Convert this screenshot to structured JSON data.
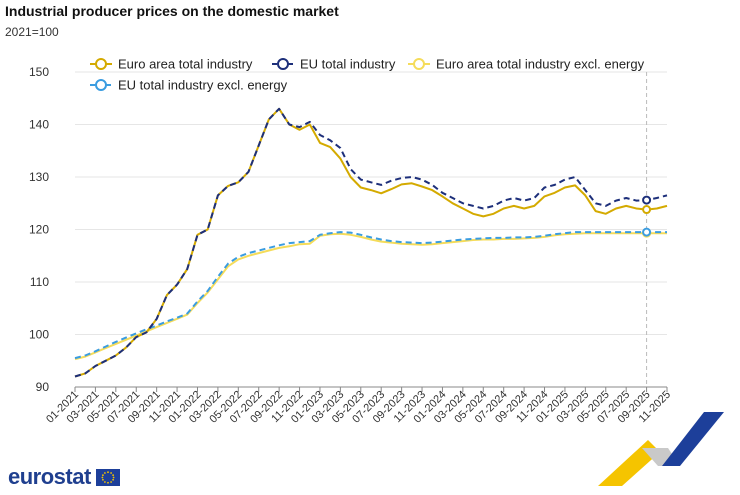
{
  "header": {
    "title": "Industrial producer prices on the domestic market",
    "subtitle": "2021=100"
  },
  "logo": {
    "text": "eurostat"
  },
  "colors": {
    "euro_area_total": "#d4aa00",
    "eu_total": "#1d2f7a",
    "euro_area_excl_energy": "#f5dc5a",
    "eu_excl_energy": "#3a9ce0",
    "grid": "#e6e6e6",
    "axis": "#888888",
    "deco_yellow": "#f5c400",
    "deco_blue": "#1d3f9a",
    "deco_grey": "#c9c9c9"
  },
  "chart_data": {
    "type": "line",
    "title": "Industrial producer prices on the domestic market",
    "subtitle": "2021=100",
    "xlabel": "",
    "ylabel": "",
    "ylim": [
      90,
      150
    ],
    "yticks": [
      90,
      100,
      110,
      120,
      130,
      140,
      150
    ],
    "grid": "horizontal",
    "legend_position": "top",
    "x_tick_labels": [
      "01-2021",
      "03-2021",
      "05-2021",
      "07-2021",
      "09-2021",
      "11-2021",
      "01-2022",
      "03-2022",
      "05-2022",
      "07-2022",
      "09-2022",
      "11-2022",
      "01-2023",
      "03-2023",
      "05-2023",
      "07-2023",
      "09-2023",
      "11-2023",
      "01-2024",
      "03-2024",
      "05-2024",
      "07-2024",
      "09-2024",
      "11-2024",
      "01-2025",
      "03-2025",
      "05-2025",
      "07-2025",
      "09-2025",
      "11-2025"
    ],
    "highlight_category": "09-2025",
    "series": [
      {
        "name": "Euro area total industry",
        "color_key": "euro_area_total",
        "dash": false,
        "values": [
          92.0,
          92.6,
          94.0,
          95.0,
          96.0,
          97.5,
          99.5,
          100.4,
          103.0,
          107.5,
          109.5,
          112.5,
          119.0,
          120.0,
          126.5,
          128.3,
          129.0,
          131.0,
          136.0,
          141.0,
          143.0,
          140.0,
          139.0,
          140.0,
          136.5,
          135.7,
          133.5,
          130.0,
          128.0,
          127.5,
          126.9,
          127.7,
          128.6,
          128.8,
          128.2,
          127.5,
          126.3,
          125.0,
          124.0,
          123.0,
          122.5,
          123.0,
          124.0,
          124.5,
          124.0,
          124.5,
          126.3,
          127.0,
          128.0,
          128.4,
          126.5,
          123.5,
          123.0,
          124.0,
          124.5,
          124.0,
          123.8,
          124.0,
          124.5
        ]
      },
      {
        "name": "EU total industry",
        "color_key": "eu_total",
        "dash": true,
        "values": [
          92.0,
          92.6,
          94.0,
          95.0,
          96.0,
          97.5,
          99.5,
          100.4,
          103.0,
          107.5,
          109.5,
          112.5,
          119.0,
          120.0,
          126.5,
          128.3,
          129.0,
          131.0,
          136.0,
          141.0,
          143.0,
          140.0,
          139.5,
          140.5,
          138.0,
          137.0,
          135.5,
          131.5,
          129.5,
          129.0,
          128.5,
          129.3,
          129.8,
          130.0,
          129.5,
          128.5,
          127.0,
          126.0,
          125.0,
          124.5,
          124.0,
          124.5,
          125.5,
          126.0,
          125.5,
          126.0,
          128.0,
          128.5,
          129.5,
          130.0,
          127.5,
          125.0,
          124.5,
          125.5,
          126.0,
          125.5,
          125.6,
          126.0,
          126.5
        ]
      },
      {
        "name": "Euro area total industry excl. energy",
        "color_key": "euro_area_excl_energy",
        "dash": false,
        "values": [
          95.3,
          95.8,
          96.6,
          97.4,
          98.2,
          99.0,
          99.8,
          100.6,
          101.4,
          102.2,
          103.0,
          103.8,
          106.0,
          108.0,
          110.5,
          113.0,
          114.3,
          115.0,
          115.5,
          116.0,
          116.5,
          116.8,
          117.2,
          117.3,
          118.8,
          119.1,
          119.2,
          119.0,
          118.6,
          118.1,
          117.7,
          117.5,
          117.3,
          117.2,
          117.1,
          117.2,
          117.4,
          117.6,
          117.8,
          118.0,
          118.1,
          118.1,
          118.2,
          118.2,
          118.3,
          118.4,
          118.6,
          118.9,
          119.1,
          119.2,
          119.3,
          119.3,
          119.3,
          119.3,
          119.3,
          119.3,
          119.3,
          119.3,
          119.3
        ]
      },
      {
        "name": "EU total industry excl. energy",
        "color_key": "eu_excl_energy",
        "dash": true,
        "values": [
          95.5,
          96.0,
          96.8,
          97.7,
          98.6,
          99.4,
          100.2,
          101.0,
          101.7,
          102.5,
          103.2,
          104.0,
          106.3,
          108.3,
          111.0,
          113.5,
          114.8,
          115.5,
          116.0,
          116.5,
          117.0,
          117.4,
          117.6,
          117.8,
          119.0,
          119.3,
          119.5,
          119.4,
          119.0,
          118.5,
          118.1,
          117.8,
          117.6,
          117.5,
          117.4,
          117.5,
          117.7,
          117.9,
          118.1,
          118.2,
          118.3,
          118.4,
          118.4,
          118.5,
          118.5,
          118.6,
          118.8,
          119.1,
          119.3,
          119.5,
          119.5,
          119.5,
          119.5,
          119.5,
          119.5,
          119.5,
          119.5,
          119.5,
          119.5
        ]
      }
    ]
  }
}
